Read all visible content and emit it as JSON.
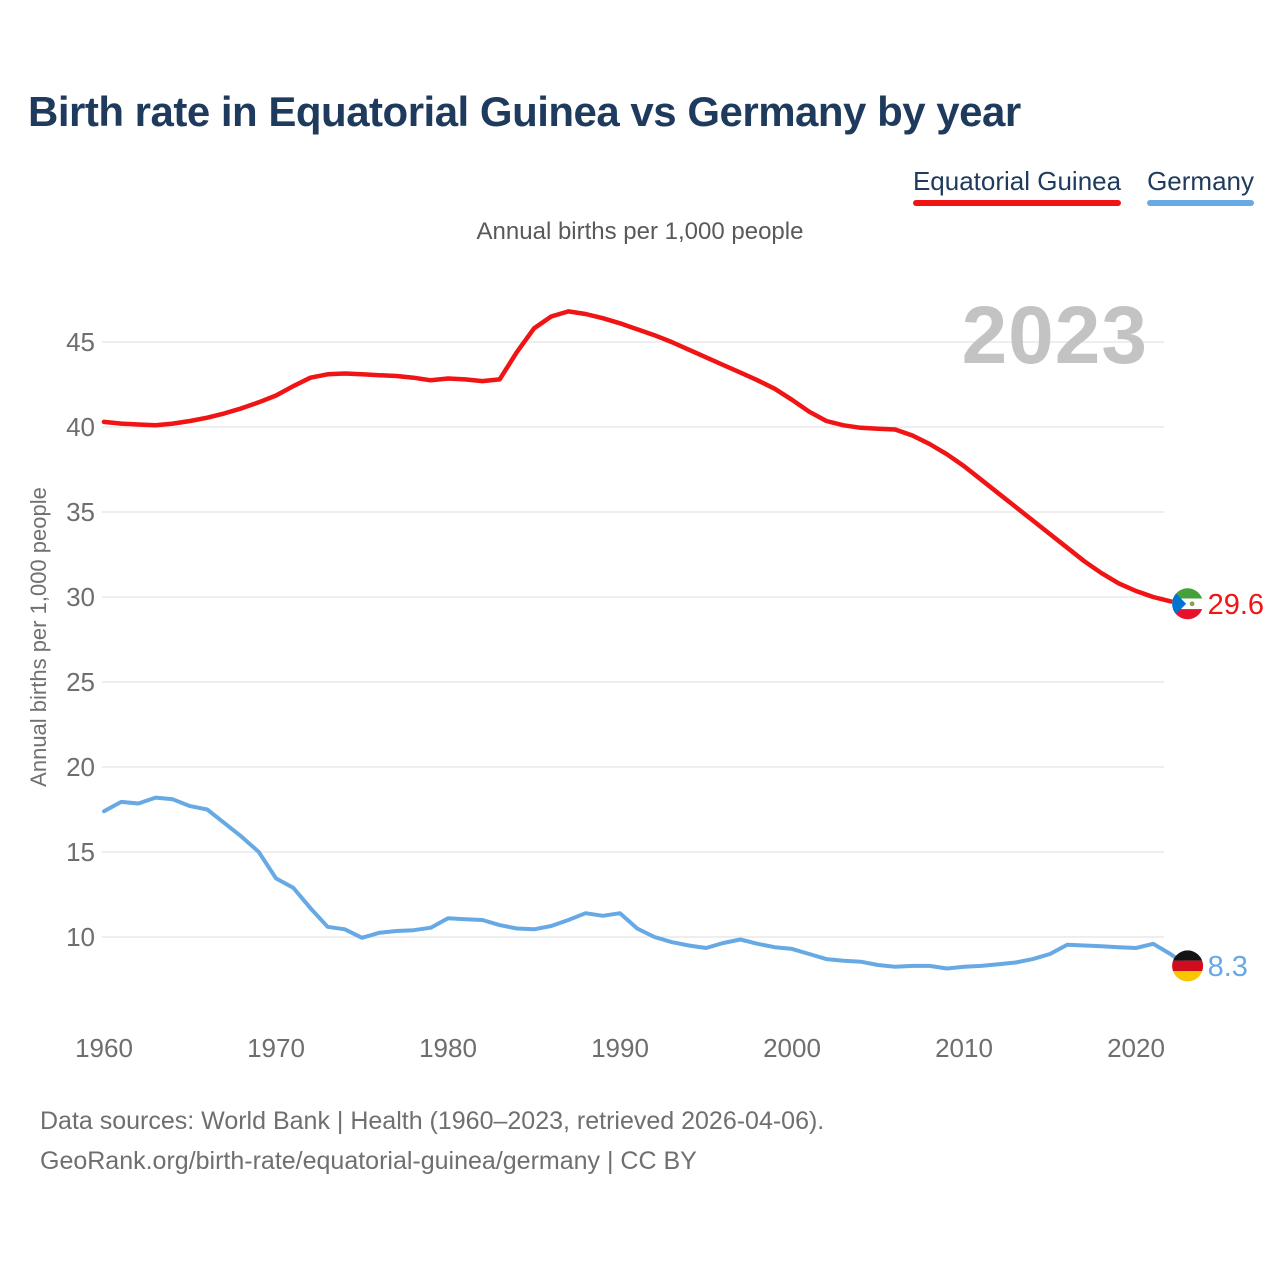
{
  "page": {
    "title": "Birth rate in Equatorial Guinea vs Germany by year",
    "subtitle": "Annual births per 1,000 people",
    "watermark_year": "2023",
    "footer_line1": "Data sources: World Bank | Health (1960–2023, retrieved 2026-04-06).",
    "footer_line2": "GeoRank.org/birth-rate/equatorial-guinea/germany | CC BY"
  },
  "chart_data": {
    "type": "line",
    "title": "Birth rate in Equatorial Guinea vs Germany by year",
    "ylabel": "Annual births per 1,000 people",
    "grid": "horizontal",
    "legend_position": "top-right",
    "xlim": [
      1960,
      2023
    ],
    "ylim": [
      7.5,
      48
    ],
    "x_ticks": [
      1960,
      1970,
      1980,
      1990,
      2000,
      2010,
      2020
    ],
    "y_ticks": [
      45,
      40,
      35,
      30,
      25,
      20,
      15,
      10
    ],
    "x": [
      1960,
      1961,
      1962,
      1963,
      1964,
      1965,
      1966,
      1967,
      1968,
      1969,
      1970,
      1971,
      1972,
      1973,
      1974,
      1975,
      1976,
      1977,
      1978,
      1979,
      1980,
      1981,
      1982,
      1983,
      1984,
      1985,
      1986,
      1987,
      1988,
      1989,
      1990,
      1991,
      1992,
      1993,
      1994,
      1995,
      1996,
      1997,
      1998,
      1999,
      2000,
      2001,
      2002,
      2003,
      2004,
      2005,
      2006,
      2007,
      2008,
      2009,
      2010,
      2011,
      2012,
      2013,
      2014,
      2015,
      2016,
      2017,
      2018,
      2019,
      2020,
      2021,
      2022,
      2023
    ],
    "series": [
      {
        "name": "Equatorial Guinea",
        "color": "#f01414",
        "end_label": "29.6",
        "end_value": 29.6,
        "values": [
          40.3,
          40.2,
          40.15,
          40.1,
          40.2,
          40.35,
          40.55,
          40.8,
          41.1,
          41.45,
          41.85,
          42.4,
          42.9,
          43.1,
          43.15,
          43.1,
          43.05,
          43.0,
          42.9,
          42.75,
          42.85,
          42.8,
          42.7,
          42.8,
          44.4,
          45.8,
          46.5,
          46.8,
          46.65,
          46.4,
          46.1,
          45.75,
          45.4,
          45.0,
          44.55,
          44.1,
          43.65,
          43.2,
          42.75,
          42.25,
          41.6,
          40.9,
          40.35,
          40.1,
          39.95,
          39.9,
          39.85,
          39.5,
          39.0,
          38.4,
          37.7,
          36.9,
          36.1,
          35.3,
          34.5,
          33.7,
          32.9,
          32.1,
          31.4,
          30.8,
          30.35,
          30.0,
          29.75,
          29.6
        ]
      },
      {
        "name": "Germany",
        "color": "#67a9e4",
        "end_label": "8.3",
        "end_value": 8.3,
        "values": [
          17.4,
          17.95,
          17.85,
          18.2,
          18.1,
          17.7,
          17.5,
          16.7,
          15.9,
          15.0,
          13.45,
          12.9,
          11.7,
          10.6,
          10.45,
          9.95,
          10.25,
          10.35,
          10.4,
          10.55,
          11.1,
          11.05,
          11.0,
          10.7,
          10.5,
          10.45,
          10.65,
          11.0,
          11.4,
          11.25,
          11.4,
          10.5,
          10.0,
          9.7,
          9.5,
          9.35,
          9.65,
          9.85,
          9.6,
          9.4,
          9.3,
          9.0,
          8.7,
          8.6,
          8.55,
          8.35,
          8.25,
          8.3,
          8.3,
          8.15,
          8.25,
          8.3,
          8.4,
          8.5,
          8.7,
          9.0,
          9.55,
          9.5,
          9.45,
          9.4,
          9.35,
          9.6,
          9.0,
          8.3
        ]
      }
    ]
  }
}
